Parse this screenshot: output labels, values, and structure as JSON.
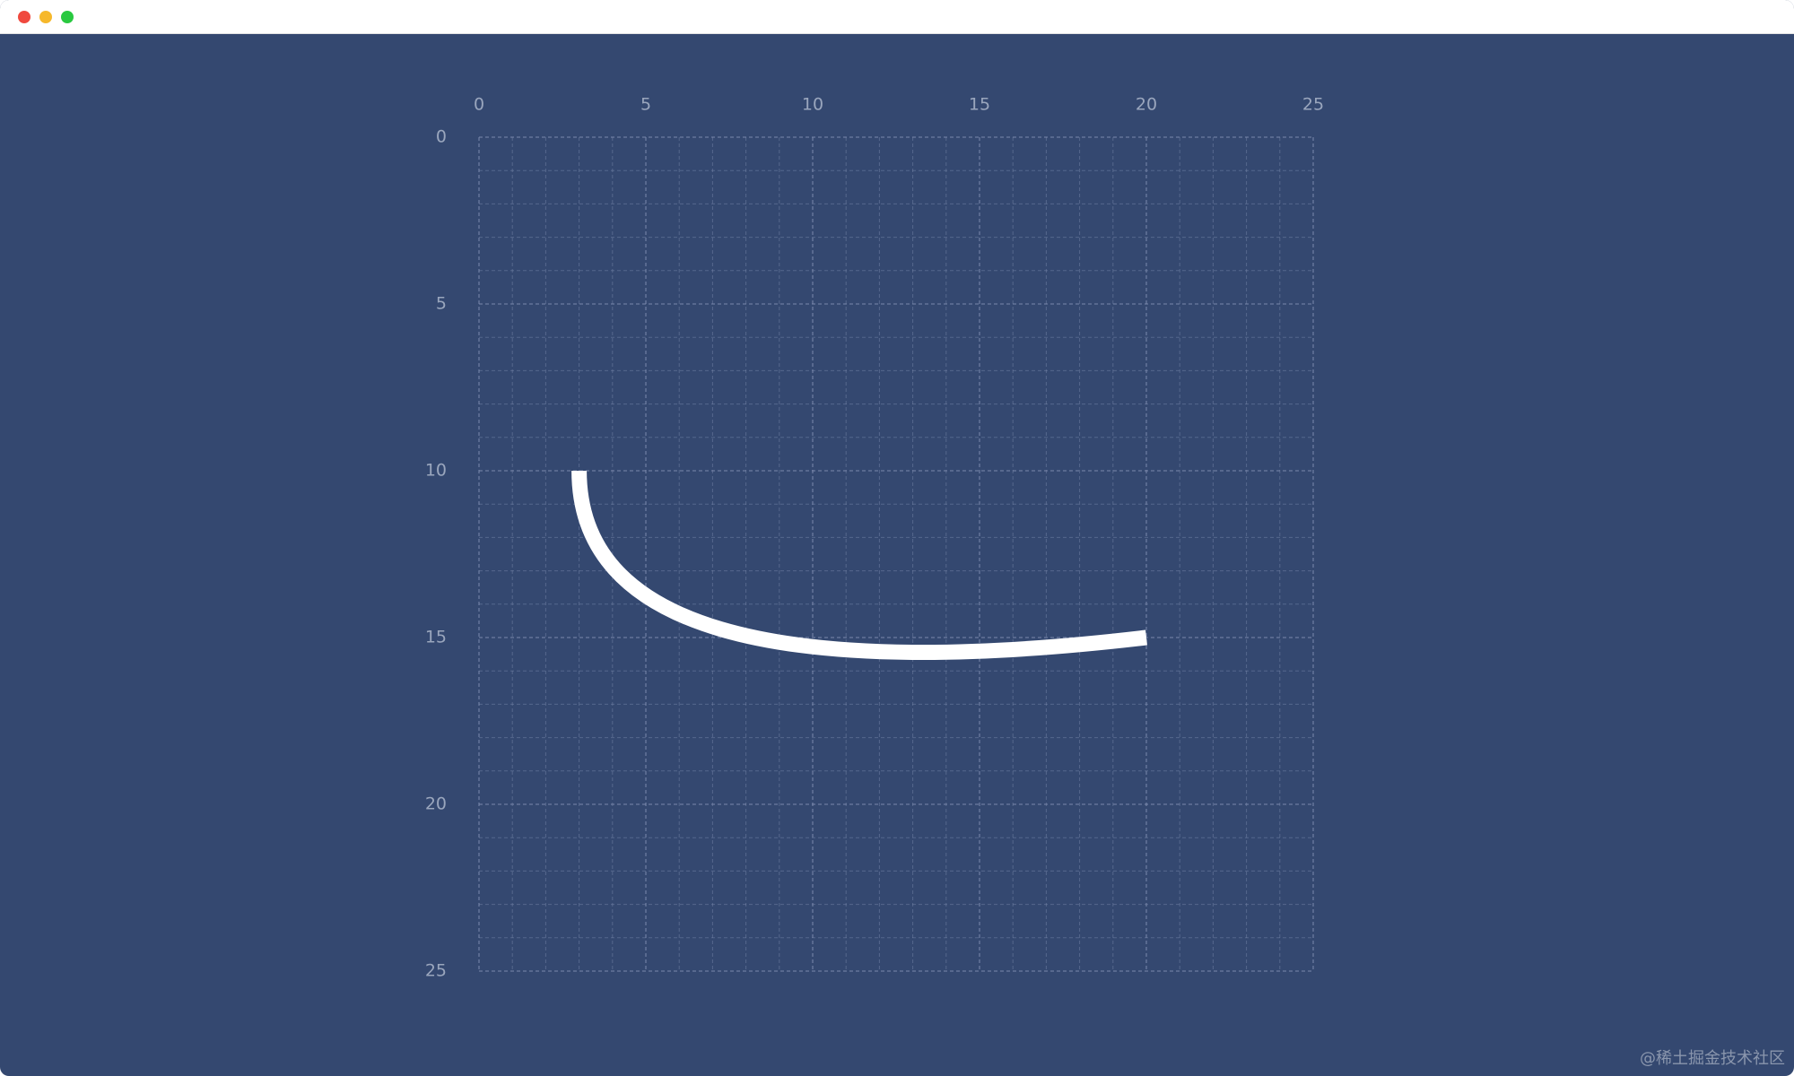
{
  "window": {
    "controls": [
      "close",
      "minimize",
      "maximize"
    ],
    "background": "#344870"
  },
  "colors": {
    "grid": "#7f8db0",
    "axis_label": "#9aa6bd",
    "curve": "#ffffff"
  },
  "chart_data": {
    "type": "line",
    "x_ticks": [
      "0",
      "5",
      "10",
      "15",
      "20",
      "25"
    ],
    "y_ticks": [
      "0",
      "5",
      "10",
      "15",
      "20",
      "25"
    ],
    "xlim": [
      0,
      25
    ],
    "ylim": [
      0,
      25
    ],
    "y_axis_direction": "down",
    "grid": true,
    "grid_step": 1,
    "curve": {
      "start": [
        3,
        10
      ],
      "control": [
        3,
        17
      ],
      "end": [
        20,
        15
      ],
      "color": "#ffffff"
    }
  },
  "watermark": "@稀土掘金技术社区"
}
